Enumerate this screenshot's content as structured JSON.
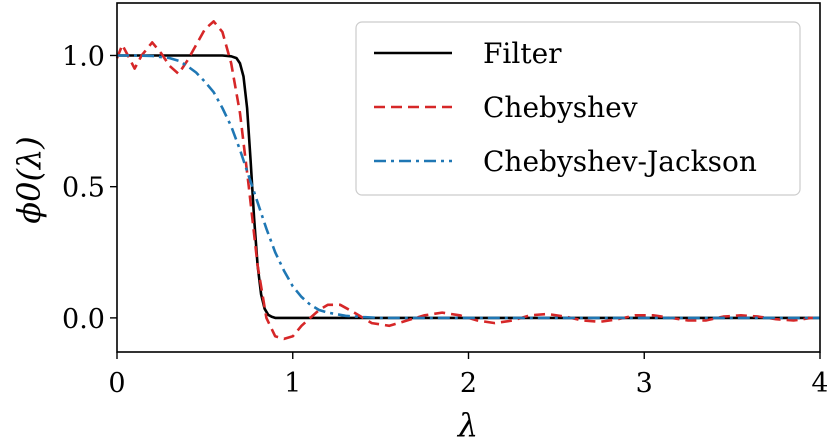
{
  "chart_data": {
    "type": "line",
    "xlabel": "λ",
    "ylabel": "ϕ0(λ)",
    "xlim": [
      0,
      4
    ],
    "ylim": [
      -0.13,
      1.2
    ],
    "x_ticks": [
      0,
      1,
      2,
      3,
      4
    ],
    "x_tick_labels": [
      "0",
      "1",
      "2",
      "3",
      "4"
    ],
    "y_ticks": [
      0.0,
      0.5,
      1.0
    ],
    "y_tick_labels": [
      "0.0",
      "0.5",
      "1.0"
    ],
    "grid": false,
    "legend_position": "top-right",
    "series": [
      {
        "name": "Filter",
        "color": "#000000",
        "dash": "solid",
        "x": [
          0,
          0.5,
          0.6,
          0.65,
          0.68,
          0.7,
          0.72,
          0.74,
          0.76,
          0.78,
          0.8,
          0.82,
          0.84,
          0.86,
          0.88,
          0.9,
          1.0,
          2.0,
          3.0,
          4.0
        ],
        "y": [
          1.0,
          1.0,
          1.0,
          0.997,
          0.99,
          0.97,
          0.92,
          0.8,
          0.6,
          0.38,
          0.2,
          0.09,
          0.035,
          0.012,
          0.004,
          0.0,
          0.0,
          0.0,
          0.0,
          0.0
        ]
      },
      {
        "name": "Chebyshev",
        "color": "#d62728",
        "dash": "dashed",
        "x": [
          0,
          0.03,
          0.07,
          0.1,
          0.14,
          0.2,
          0.25,
          0.3,
          0.35,
          0.4,
          0.45,
          0.5,
          0.55,
          0.6,
          0.65,
          0.7,
          0.75,
          0.8,
          0.85,
          0.9,
          0.95,
          1.0,
          1.05,
          1.1,
          1.15,
          1.2,
          1.27,
          1.35,
          1.45,
          1.55,
          1.65,
          1.75,
          1.85,
          1.95,
          2.05,
          2.15,
          2.25,
          2.35,
          2.45,
          2.55,
          2.65,
          2.75,
          2.85,
          2.95,
          3.05,
          3.15,
          3.25,
          3.35,
          3.45,
          3.55,
          3.65,
          3.75,
          3.85,
          3.95,
          4.0
        ],
        "y": [
          0.99,
          1.04,
          0.99,
          0.95,
          1.0,
          1.05,
          1.01,
          0.96,
          0.93,
          0.98,
          1.04,
          1.1,
          1.13,
          1.09,
          0.97,
          0.78,
          0.5,
          0.2,
          0.0,
          -0.07,
          -0.08,
          -0.07,
          -0.03,
          0.0,
          0.03,
          0.05,
          0.05,
          0.02,
          -0.02,
          -0.03,
          -0.01,
          0.01,
          0.02,
          0.01,
          -0.01,
          -0.02,
          -0.01,
          0.01,
          0.015,
          0.005,
          -0.01,
          -0.015,
          -0.005,
          0.01,
          0.01,
          0.0,
          -0.01,
          -0.01,
          0.005,
          0.01,
          0.005,
          -0.005,
          -0.01,
          0.0,
          0.0
        ]
      },
      {
        "name": "Chebyshev-Jackson",
        "color": "#1f77b4",
        "dash": "dashdot",
        "x": [
          0,
          0.1,
          0.2,
          0.3,
          0.35,
          0.4,
          0.45,
          0.5,
          0.55,
          0.6,
          0.65,
          0.7,
          0.75,
          0.8,
          0.85,
          0.9,
          0.95,
          1.0,
          1.05,
          1.1,
          1.15,
          1.2,
          1.3,
          1.4,
          1.5,
          2.0,
          2.5,
          3.0,
          3.5,
          4.0
        ],
        "y": [
          1.0,
          1.0,
          0.998,
          0.99,
          0.98,
          0.96,
          0.935,
          0.9,
          0.86,
          0.8,
          0.73,
          0.64,
          0.54,
          0.44,
          0.34,
          0.25,
          0.18,
          0.12,
          0.08,
          0.05,
          0.03,
          0.02,
          0.008,
          0.003,
          0.0,
          0.0,
          0.0,
          0.0,
          0.0,
          0.0
        ]
      }
    ]
  }
}
